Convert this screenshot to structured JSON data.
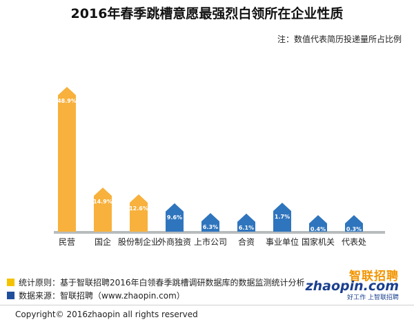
{
  "title": "2016年春季跳槽意愿最强烈白领所在企业性质",
  "note": "注：数值代表简历投递量所占比例",
  "chart_data": {
    "type": "bar",
    "title": "2016年春季跳槽意愿最强烈白领所在企业性质",
    "categories": [
      "民营",
      "国企",
      "股份制企业",
      "外商独资",
      "上市公司",
      "合资",
      "事业单位",
      "国家机关",
      "代表处"
    ],
    "values": [
      48.9,
      14.9,
      12.6,
      9.6,
      6.3,
      6.1,
      1.7,
      0.4,
      0.3
    ],
    "value_labels": [
      "48.9%",
      "14.9%",
      "12.6%",
      "9.6%",
      "6.3%",
      "6.1%",
      "1.7%",
      "0.4%",
      "0.3%"
    ],
    "bar_colors": [
      "#f7b13c",
      "#f7b13c",
      "#f7b13c",
      "#2f75bd",
      "#2f75bd",
      "#2f75bd",
      "#2f75bd",
      "#2f75bd",
      "#2f75bd"
    ],
    "unit": "%",
    "grid": false,
    "legend": "none"
  },
  "footer": {
    "principle": "统计原则：基于智联招聘2016年白领春季跳槽调研数据库的数据监测统计分析",
    "source": "数据来源：智联招聘（www.zhaopin.com）",
    "principle_color": "#f5c200",
    "source_color": "#1f4e9c"
  },
  "logo": {
    "cn": "智联招聘",
    "en": "zhaopin.com",
    "slogan": "好工作 上智联招聘"
  },
  "copyright": "Copyright© 2016zhaopin all rights reserved"
}
